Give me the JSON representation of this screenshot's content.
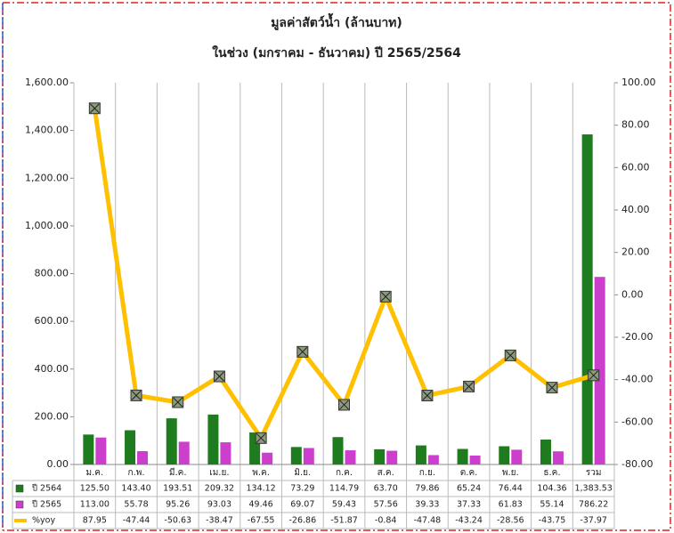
{
  "chart_data": {
    "type": "bar",
    "title": "มูลค่าสัตว์น้ำ (ล้านบาท)",
    "subtitle": "ในช่วง (มกราคม - ธันวาคม) ปี 2565/2564",
    "categories": [
      "ม.ค.",
      "ก.พ.",
      "มี.ค.",
      "เม.ย.",
      "พ.ค.",
      "มิ.ย.",
      "ก.ค.",
      "ส.ค.",
      "ก.ย.",
      "ต.ค.",
      "พ.ย.",
      "ธ.ค.",
      "รวม"
    ],
    "series": [
      {
        "name": "ปี 2564",
        "color": "#1e7b1e",
        "type": "bar",
        "values": [
          125.5,
          143.4,
          193.51,
          209.32,
          134.12,
          73.29,
          114.79,
          63.7,
          79.86,
          65.24,
          76.44,
          104.36,
          1383.53
        ],
        "value_labels": [
          "125.50",
          "143.40",
          "193.51",
          "209.32",
          "134.12",
          "73.29",
          "114.79",
          "63.70",
          "79.86",
          "65.24",
          "76.44",
          "104.36",
          "1,383.53"
        ]
      },
      {
        "name": "ปี 2565",
        "color": "#cc3fcc",
        "type": "bar",
        "values": [
          113.0,
          55.78,
          95.26,
          93.03,
          49.46,
          69.07,
          59.43,
          57.56,
          39.33,
          37.33,
          61.83,
          55.14,
          786.22
        ],
        "value_labels": [
          "113.00",
          "55.78",
          "95.26",
          "93.03",
          "49.46",
          "69.07",
          "59.43",
          "57.56",
          "39.33",
          "37.33",
          "61.83",
          "55.14",
          "786.22"
        ]
      },
      {
        "name": "%yoy",
        "color": "#ffc000",
        "type": "line",
        "axis": "y2",
        "values": [
          87.95,
          -47.44,
          -50.63,
          -38.47,
          -67.55,
          -26.86,
          -51.87,
          -0.84,
          -47.48,
          -43.24,
          -28.56,
          -43.75,
          -37.97
        ]
      }
    ],
    "ylim": [
      0,
      1600
    ],
    "yticks": [
      {
        "value": 0,
        "label": "0.00"
      },
      {
        "value": 200,
        "label": "200.00"
      },
      {
        "value": 400,
        "label": "400.00"
      },
      {
        "value": 600,
        "label": "600.00"
      },
      {
        "value": 800,
        "label": "800.00"
      },
      {
        "value": 1000,
        "label": "1,000.00"
      },
      {
        "value": 1200,
        "label": "1,200.00"
      },
      {
        "value": 1400,
        "label": "1,400.00"
      },
      {
        "value": 1600,
        "label": "1,600.00"
      }
    ],
    "y2lim": [
      -80,
      100
    ],
    "y2ticks": [
      {
        "value": -80,
        "label": "-80.00"
      },
      {
        "value": -60,
        "label": "-60.00"
      },
      {
        "value": -40,
        "label": "-40.00"
      },
      {
        "value": -20,
        "label": "-20.00"
      },
      {
        "value": 0,
        "label": "0.00"
      },
      {
        "value": 20,
        "label": "20.00"
      },
      {
        "value": 40,
        "label": "40.00"
      },
      {
        "value": 60,
        "label": "60.00"
      },
      {
        "value": 80,
        "label": "80.00"
      },
      {
        "value": 100,
        "label": "100.00"
      }
    ]
  }
}
